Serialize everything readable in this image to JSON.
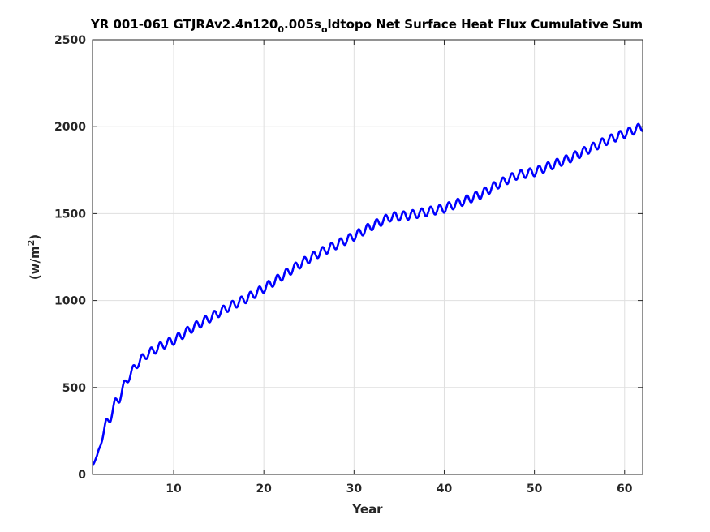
{
  "chart_data": {
    "type": "line",
    "title": {
      "prefix": "YR 001-061 GTJRAv2.4n120",
      "sub1": "0",
      "middle": ".005s",
      "sub2": "o",
      "suffix": "ldtopo Net Surface Heat Flux  Cumulative Sum"
    },
    "xlabel": "Year",
    "ylabel": {
      "base": "(w/m",
      "sup": "2",
      "close": ")"
    },
    "xlim": [
      1,
      62
    ],
    "ylim": [
      0,
      2500
    ],
    "xticks": [
      10,
      20,
      30,
      40,
      50,
      60
    ],
    "yticks": [
      0,
      500,
      1000,
      1500,
      2000,
      2500
    ],
    "grid": true,
    "series_color": "#0000ff",
    "series": [
      {
        "x": [
          1,
          1.5,
          2,
          2.5,
          3,
          3.5,
          4,
          4.5,
          5,
          6,
          7,
          8,
          9,
          10,
          12,
          14,
          16,
          18,
          20,
          22,
          24,
          26,
          28,
          30,
          32,
          34,
          36,
          38,
          40,
          42,
          44,
          46,
          48,
          50,
          52,
          54,
          56,
          58,
          60,
          62
        ],
        "y": [
          50,
          100,
          200,
          290,
          330,
          410,
          440,
          510,
          560,
          640,
          690,
          720,
          750,
          770,
          840,
          900,
          960,
          1010,
          1070,
          1140,
          1210,
          1270,
          1320,
          1370,
          1430,
          1480,
          1490,
          1510,
          1530,
          1570,
          1610,
          1670,
          1720,
          1740,
          1780,
          1820,
          1870,
          1920,
          1960,
          2000
        ]
      }
    ],
    "seasonal_amplitude": 25
  }
}
